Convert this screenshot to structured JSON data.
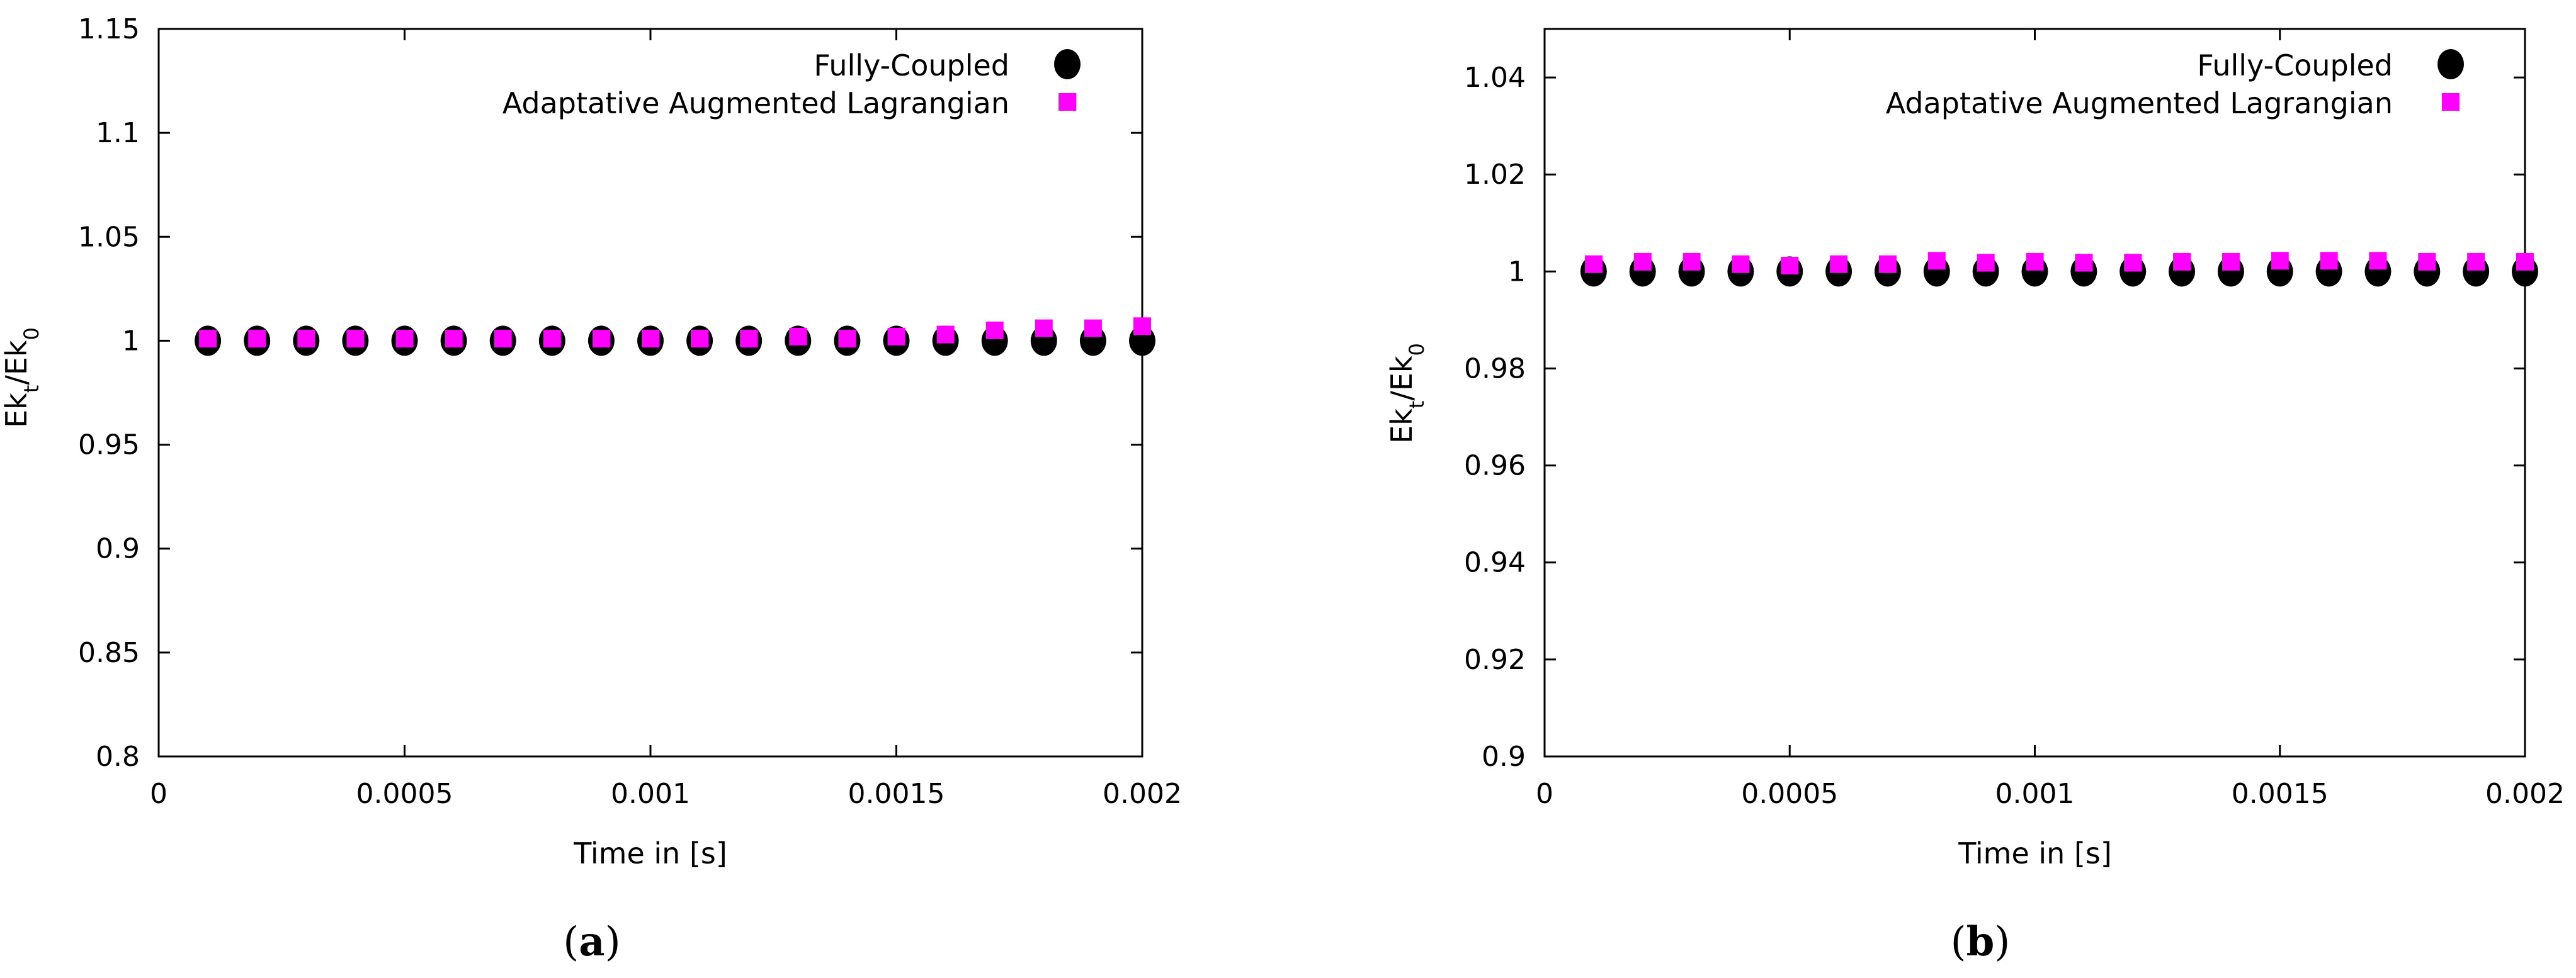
{
  "colors": {
    "series1": "#000000",
    "series2": "#ff00ff"
  },
  "chart_data": [
    {
      "type": "scatter",
      "caption": "a",
      "xlabel": "Time in [s]",
      "ylabel_main": "Ek",
      "ylabel_sub1": "t",
      "ylabel_sep": "/Ek",
      "ylabel_sub2": "0",
      "xlim": [
        0,
        0.002
      ],
      "ylim": [
        0.8,
        1.15
      ],
      "xticks": [
        0,
        0.0005,
        0.001,
        0.0015,
        0.002
      ],
      "xtick_labels": [
        "0",
        "0.0005",
        "0.001",
        "0.0015",
        "0.002"
      ],
      "yticks": [
        0.8,
        0.85,
        0.9,
        0.95,
        1,
        1.05,
        1.1,
        1.15
      ],
      "ytick_labels": [
        "0.8",
        "0.85",
        "0.9",
        "0.95",
        "1",
        "1.05",
        "1.1",
        "1.15"
      ],
      "legend_position": "top-right",
      "x": [
        0.0001,
        0.0002,
        0.0003,
        0.0004,
        0.0005,
        0.0006,
        0.0007,
        0.0008,
        0.0009,
        0.001,
        0.0011,
        0.0012,
        0.0013,
        0.0014,
        0.0015,
        0.0016,
        0.0017,
        0.0018,
        0.0019,
        0.002
      ],
      "series": [
        {
          "name": "Fully-Coupled",
          "marker": "circle",
          "values": [
            1,
            1,
            1,
            1,
            1,
            1,
            1,
            1,
            1,
            1,
            1,
            1,
            1,
            1,
            1,
            1,
            1,
            1,
            1,
            1
          ]
        },
        {
          "name": "Adaptative Augmented Lagrangian",
          "marker": "square",
          "values": [
            1.001,
            1.001,
            1.001,
            1.001,
            1.001,
            1.001,
            1.001,
            1.001,
            1.001,
            1.001,
            1.001,
            1.001,
            1.002,
            1.001,
            1.002,
            1.003,
            1.005,
            1.006,
            1.006,
            1.007
          ]
        }
      ]
    },
    {
      "type": "scatter",
      "caption": "b",
      "xlabel": "Time in [s]",
      "ylabel_main": "Ek",
      "ylabel_sub1": "t",
      "ylabel_sep": "/Ek",
      "ylabel_sub2": "0",
      "xlim": [
        0,
        0.002
      ],
      "ylim": [
        0.9,
        1.05
      ],
      "xticks": [
        0,
        0.0005,
        0.001,
        0.0015,
        0.002
      ],
      "xtick_labels": [
        "0",
        "0.0005",
        "0.001",
        "0.0015",
        "0.002"
      ],
      "yticks": [
        0.9,
        0.92,
        0.94,
        0.96,
        0.98,
        1,
        1.02,
        1.04
      ],
      "ytick_labels": [
        "0.9",
        "0.92",
        "0.94",
        "0.96",
        "0.98",
        "1",
        "1.02",
        "1.04"
      ],
      "legend_position": "top-right",
      "x": [
        0.0001,
        0.0002,
        0.0003,
        0.0004,
        0.0005,
        0.0006,
        0.0007,
        0.0008,
        0.0009,
        0.001,
        0.0011,
        0.0012,
        0.0013,
        0.0014,
        0.0015,
        0.0016,
        0.0017,
        0.0018,
        0.0019,
        0.002
      ],
      "series": [
        {
          "name": "Fully-Coupled",
          "marker": "circle",
          "values": [
            1,
            1,
            1,
            1,
            1,
            1,
            1,
            1,
            1,
            1,
            1,
            1,
            1,
            1,
            1,
            1,
            1,
            1,
            1,
            1
          ]
        },
        {
          "name": "Adaptative Augmented Lagrangian",
          "marker": "square",
          "values": [
            1.0015,
            1.002,
            1.002,
            1.0015,
            1.0012,
            1.0015,
            1.0015,
            1.0022,
            1.0018,
            1.002,
            1.0018,
            1.0018,
            1.002,
            1.002,
            1.0022,
            1.0022,
            1.0022,
            1.002,
            1.002,
            1.002
          ]
        }
      ]
    }
  ]
}
